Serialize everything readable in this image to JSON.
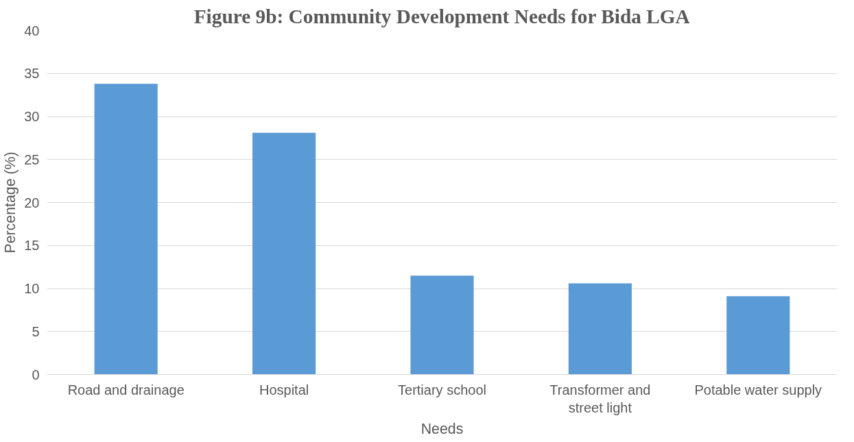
{
  "chart_data": {
    "type": "bar",
    "title": "Figure 9b: Community Development Needs for Bida LGA",
    "xlabel": "Needs",
    "ylabel": "Percentage (%)",
    "categories": [
      "Road and drainage",
      "Hospital",
      "Tertiary school",
      "Transformer and street light",
      "Potable water supply"
    ],
    "values": [
      33.8,
      28.1,
      11.5,
      10.6,
      9.1
    ],
    "color": "#5b9bd5",
    "ylim": [
      0,
      40
    ],
    "yticks": [
      0,
      5,
      10,
      15,
      20,
      25,
      30,
      35,
      40
    ],
    "grid": "y"
  }
}
